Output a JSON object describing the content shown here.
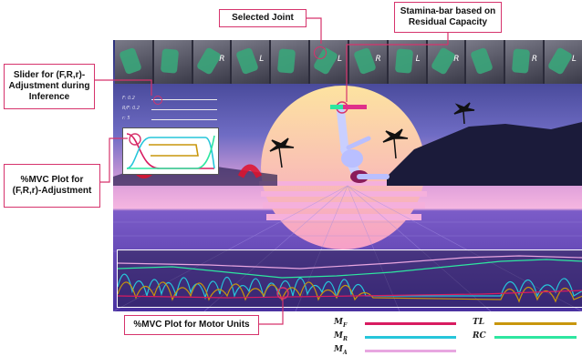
{
  "callouts": {
    "selected_joint": "Selected Joint",
    "stamina_bar": "Stamina-bar based on Residual Capacity",
    "slider": "Slider for (F,R,r)-Adjustment during Inference",
    "mvc_plot_frr": "%MVC Plot for (F,R,r)-Adjustment",
    "mvc_plot_motor": "%MVC Plot for Motor Units"
  },
  "thumbnail_letters": [
    "",
    "",
    "R",
    "L",
    "",
    "L",
    "R",
    "L",
    "R",
    "",
    "R",
    "L"
  ],
  "slider_labels": [
    "F: 0.2",
    "R/F: 0.2",
    "r: 5"
  ],
  "legend": [
    {
      "symbol": "M",
      "sub": "F",
      "color": "#d81b60"
    },
    {
      "symbol": "M",
      "sub": "R",
      "color": "#26c6da"
    },
    {
      "symbol": "M",
      "sub": "A",
      "color": "#e8a6e0"
    },
    {
      "symbol": "TL",
      "sub": "",
      "color": "#c8960c"
    },
    {
      "symbol": "RC",
      "sub": "",
      "color": "#2ee6a0"
    }
  ],
  "colors": {
    "accent": "#d6336c",
    "sky_top": "#2a2f7a",
    "sky_mid": "#7a6fc4",
    "horizon": "#f7a8d8",
    "sun": "#fcd68a",
    "floor": "#5a3fa8"
  }
}
